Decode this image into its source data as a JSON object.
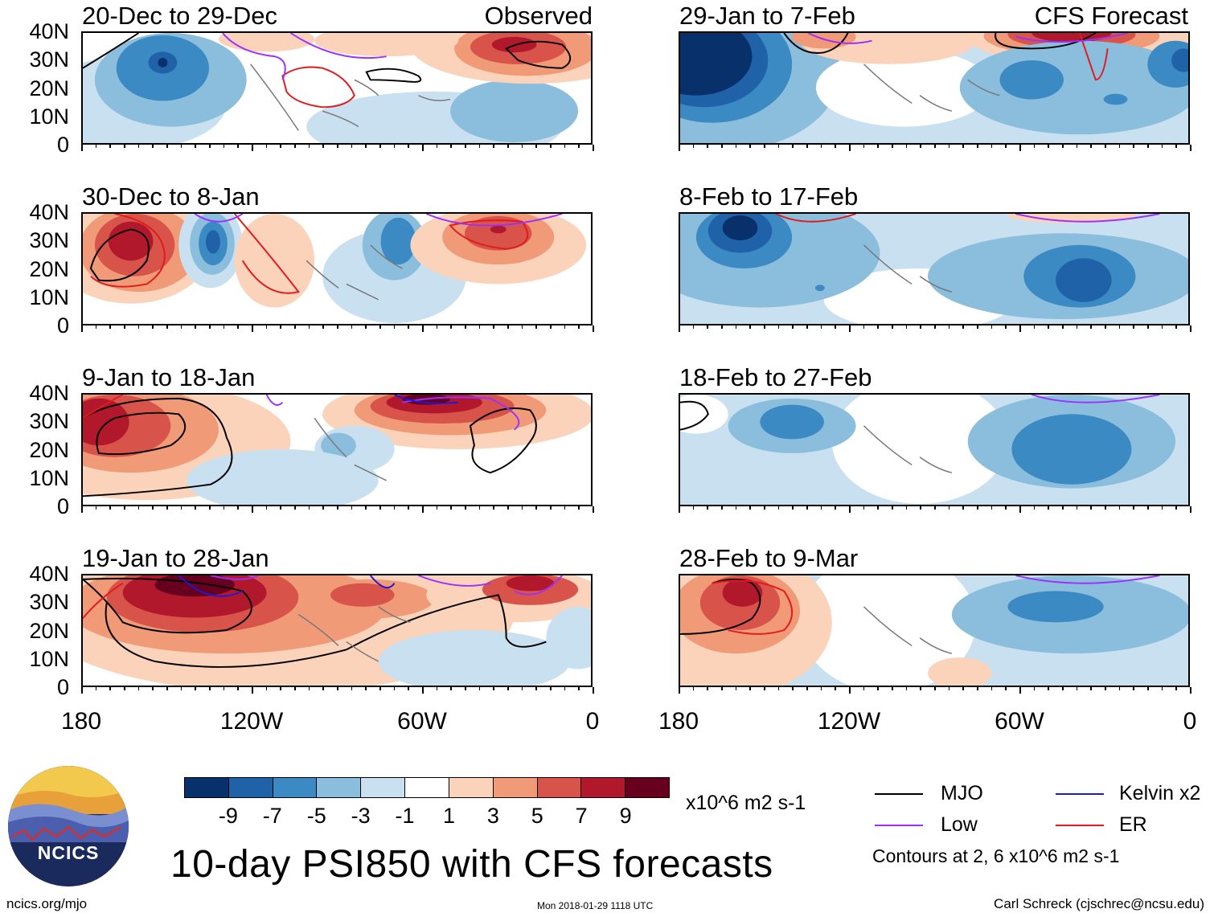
{
  "title": "10-day PSI850 with CFS forecasts",
  "left_header": "Observed",
  "right_header": "CFS Forecast",
  "lat_labels": [
    "40N",
    "30N",
    "20N",
    "10N",
    "0"
  ],
  "lon_labels": [
    "180",
    "120W",
    "60W",
    "0"
  ],
  "panels_left": [
    {
      "title": "20-Dec to 29-Dec"
    },
    {
      "title": "30-Dec to 8-Jan"
    },
    {
      "title": "9-Jan to 18-Jan"
    },
    {
      "title": "19-Jan to 28-Jan"
    }
  ],
  "panels_right": [
    {
      "title": "29-Jan to 7-Feb"
    },
    {
      "title": "8-Feb to 17-Feb"
    },
    {
      "title": "18-Feb to 27-Feb"
    },
    {
      "title": "28-Feb to 9-Mar"
    }
  ],
  "colorbar": {
    "labels": [
      "-9",
      "-7",
      "-5",
      "-3",
      "-1",
      "1",
      "3",
      "5",
      "7",
      "9"
    ],
    "colors": [
      "#08306b",
      "#1f62a8",
      "#3c8ac4",
      "#8bbedc",
      "#c8e0ef",
      "#ffffff",
      "#fbd3bb",
      "#f09a78",
      "#d8534a",
      "#b2182b",
      "#67001f"
    ],
    "units": "x10^6 m2 s-1"
  },
  "legend": {
    "items": [
      {
        "label": "MJO",
        "color": "#000000"
      },
      {
        "label": "Kelvin x2",
        "color": "#1a1adb"
      },
      {
        "label": "Low",
        "color": "#9b30ff"
      },
      {
        "label": "ER",
        "color": "#e31a1c"
      }
    ],
    "note": "Contours at 2, 6 x10^6 m2 s-1"
  },
  "logo_text": "NCICS",
  "footer": {
    "left": "ncics.org/mjo",
    "middle": "Mon 2018-01-29 1118 UTC",
    "right": "Carl Schreck (cjschrec@ncsu.edu)"
  }
}
